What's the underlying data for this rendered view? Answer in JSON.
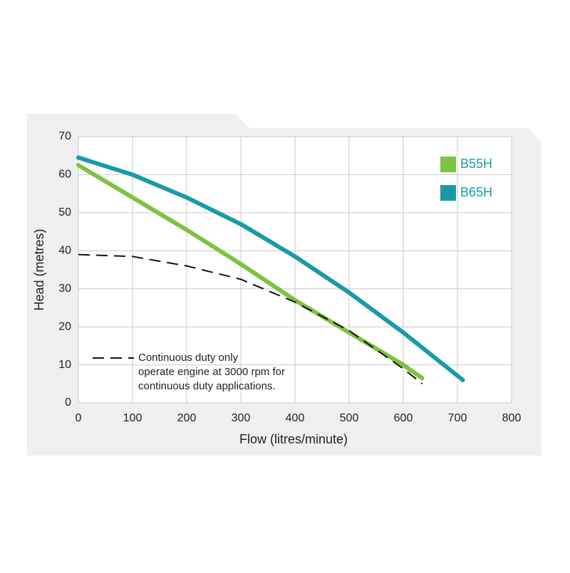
{
  "chart_data": {
    "type": "line",
    "x_label": "Flow (litres/minute)",
    "y_label": "Head (metres)",
    "xlim": [
      0,
      800
    ],
    "xticks": [
      0,
      100,
      200,
      300,
      400,
      500,
      600,
      700,
      800
    ],
    "ylim": [
      0,
      70
    ],
    "yticks": [
      0,
      10,
      20,
      30,
      40,
      50,
      60,
      70
    ],
    "grid": true,
    "legend": "upper right",
    "series": [
      {
        "name": "B55H",
        "color": "#7dc242",
        "x": [
          0,
          100,
          200,
          300,
          400,
          500,
          600,
          635
        ],
        "values": [
          62.5,
          54,
          45.5,
          36.5,
          27,
          18.5,
          10,
          6.5
        ]
      },
      {
        "name": "B65H",
        "color": "#1a9aa8",
        "x": [
          0,
          100,
          200,
          300,
          400,
          500,
          600,
          710
        ],
        "values": [
          64.5,
          60,
          54,
          47,
          38.5,
          29,
          18.5,
          6
        ]
      },
      {
        "name": "Continuous duty only",
        "color": "#111111",
        "dashed": true,
        "x": [
          0,
          100,
          200,
          300,
          400,
          500,
          600,
          635
        ],
        "values": [
          39,
          38.5,
          36,
          32.5,
          26.5,
          19,
          9,
          5
        ]
      }
    ],
    "annotation": [
      "operate engine at 3000 rpm for",
      "continuous duty applications."
    ]
  }
}
